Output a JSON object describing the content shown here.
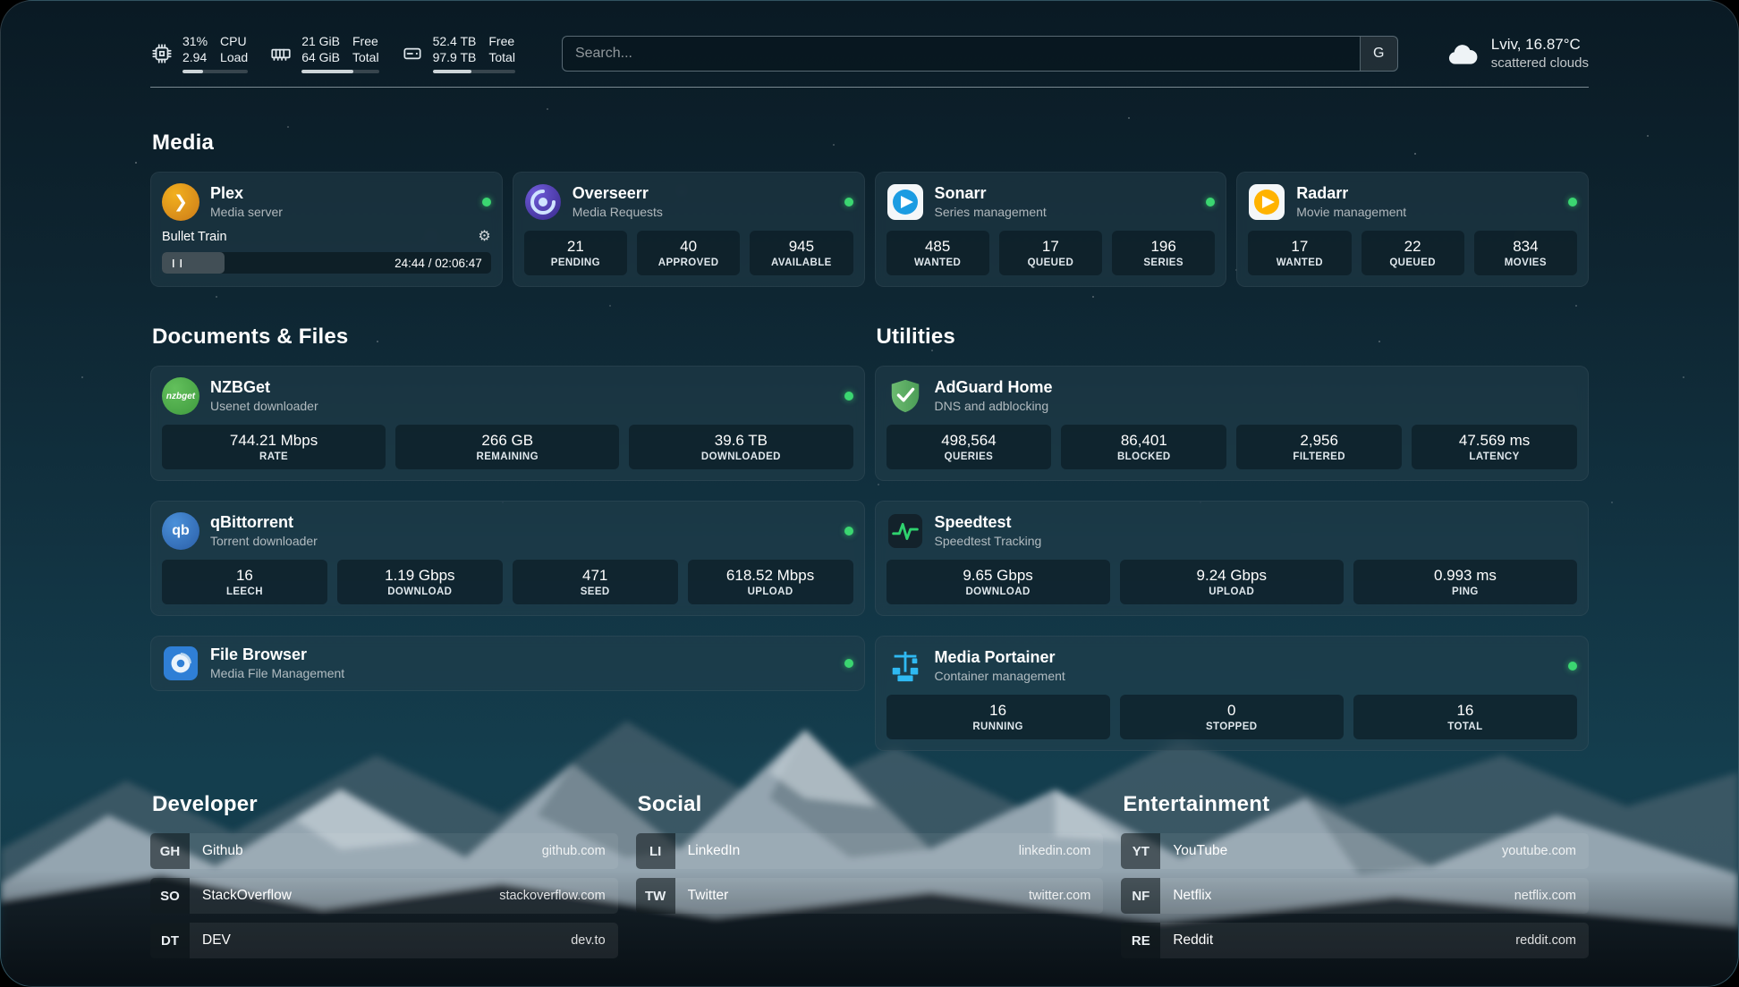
{
  "header": {
    "cpu": {
      "icon": "cpu-icon",
      "percent": "31%",
      "load": "2.94",
      "label_line1": "CPU",
      "label_line2": "Load",
      "bar_percent": 31
    },
    "memory": {
      "icon": "memory-icon",
      "free": "21 GiB",
      "total": "64 GiB",
      "label_line1": "Free",
      "label_line2": "Total",
      "bar_percent": 67
    },
    "disk": {
      "icon": "disk-icon",
      "free": "52.4 TB",
      "total": "97.9 TB",
      "label_line1": "Free",
      "label_line2": "Total",
      "bar_percent": 47
    },
    "search": {
      "placeholder": "Search...",
      "button_label": "G"
    },
    "weather": {
      "icon": "cloud-icon",
      "location": "Lviv, 16.87°C",
      "condition": "scattered clouds"
    }
  },
  "sections": {
    "media": {
      "title": "Media"
    },
    "documents": {
      "title": "Documents & Files"
    },
    "utilities": {
      "title": "Utilities"
    }
  },
  "media_cards": [
    {
      "name": "Plex",
      "subtitle": "Media server",
      "icon": "plex-icon",
      "status": "online",
      "player": {
        "now_playing": "Bullet Train",
        "time": "24:44 / 02:06:47",
        "progress_percent": 19
      }
    },
    {
      "name": "Overseerr",
      "subtitle": "Media Requests",
      "icon": "overseerr-icon",
      "status": "online",
      "stats": [
        {
          "value": "21",
          "label": "PENDING"
        },
        {
          "value": "40",
          "label": "APPROVED"
        },
        {
          "value": "945",
          "label": "AVAILABLE"
        }
      ]
    },
    {
      "name": "Sonarr",
      "subtitle": "Series management",
      "icon": "sonarr-icon",
      "status": "online",
      "stats": [
        {
          "value": "485",
          "label": "WANTED"
        },
        {
          "value": "17",
          "label": "QUEUED"
        },
        {
          "value": "196",
          "label": "SERIES"
        }
      ]
    },
    {
      "name": "Radarr",
      "subtitle": "Movie management",
      "icon": "radarr-icon",
      "status": "online",
      "stats": [
        {
          "value": "17",
          "label": "WANTED"
        },
        {
          "value": "22",
          "label": "QUEUED"
        },
        {
          "value": "834",
          "label": "MOVIES"
        }
      ]
    }
  ],
  "documents_cards": [
    {
      "name": "NZBGet",
      "subtitle": "Usenet downloader",
      "icon": "nzbget-icon",
      "icon_text": "nzbget",
      "status": "online",
      "stats": [
        {
          "value": "744.21 Mbps",
          "label": "RATE"
        },
        {
          "value": "266 GB",
          "label": "REMAINING"
        },
        {
          "value": "39.6 TB",
          "label": "DOWNLOADED"
        }
      ]
    },
    {
      "name": "qBittorrent",
      "subtitle": "Torrent downloader",
      "icon": "qbittorrent-icon",
      "icon_text": "qb",
      "status": "online",
      "stats": [
        {
          "value": "16",
          "label": "LEECH"
        },
        {
          "value": "1.19 Gbps",
          "label": "DOWNLOAD"
        },
        {
          "value": "471",
          "label": "SEED"
        },
        {
          "value": "618.52 Mbps",
          "label": "UPLOAD"
        }
      ]
    },
    {
      "name": "File Browser",
      "subtitle": "Media File Management",
      "icon": "filebrowser-icon",
      "status": "online",
      "stats": []
    }
  ],
  "utilities_cards": [
    {
      "name": "AdGuard Home",
      "subtitle": "DNS and adblocking",
      "icon": "adguard-icon",
      "stats": [
        {
          "value": "498,564",
          "label": "QUERIES"
        },
        {
          "value": "86,401",
          "label": "BLOCKED"
        },
        {
          "value": "2,956",
          "label": "FILTERED"
        },
        {
          "value": "47.569 ms",
          "label": "LATENCY"
        }
      ]
    },
    {
      "name": "Speedtest",
      "subtitle": "Speedtest Tracking",
      "icon": "speedtest-icon",
      "stats": [
        {
          "value": "9.65 Gbps",
          "label": "DOWNLOAD"
        },
        {
          "value": "9.24 Gbps",
          "label": "UPLOAD"
        },
        {
          "value": "0.993 ms",
          "label": "PING"
        }
      ]
    },
    {
      "name": "Media Portainer",
      "subtitle": "Container management",
      "icon": "portainer-icon",
      "status": "online",
      "stats": [
        {
          "value": "16",
          "label": "RUNNING"
        },
        {
          "value": "0",
          "label": "STOPPED"
        },
        {
          "value": "16",
          "label": "TOTAL"
        }
      ]
    }
  ],
  "bookmarks": [
    {
      "title": "Developer",
      "items": [
        {
          "abbr": "GH",
          "label": "Github",
          "url": "github.com"
        },
        {
          "abbr": "SO",
          "label": "StackOverflow",
          "url": "stackoverflow.com"
        },
        {
          "abbr": "DT",
          "label": "DEV",
          "url": "dev.to"
        }
      ]
    },
    {
      "title": "Social",
      "items": [
        {
          "abbr": "LI",
          "label": "LinkedIn",
          "url": "linkedin.com"
        },
        {
          "abbr": "TW",
          "label": "Twitter",
          "url": "twitter.com"
        }
      ]
    },
    {
      "title": "Entertainment",
      "items": [
        {
          "abbr": "YT",
          "label": "YouTube",
          "url": "youtube.com"
        },
        {
          "abbr": "NF",
          "label": "Netflix",
          "url": "netflix.com"
        },
        {
          "abbr": "RE",
          "label": "Reddit",
          "url": "reddit.com"
        }
      ]
    }
  ],
  "colors": {
    "status_online": "#3bd671",
    "background_top": "#0a1a24",
    "background_mid": "#123443",
    "plex_gold": "#e5a00d",
    "sonarr_blue": "#1b9ce2",
    "radarr_amber": "#ffb300",
    "adguard_green": "#5aab5f",
    "speedtest_green": "#2fd36f",
    "portainer_blue": "#2fb9f2"
  }
}
